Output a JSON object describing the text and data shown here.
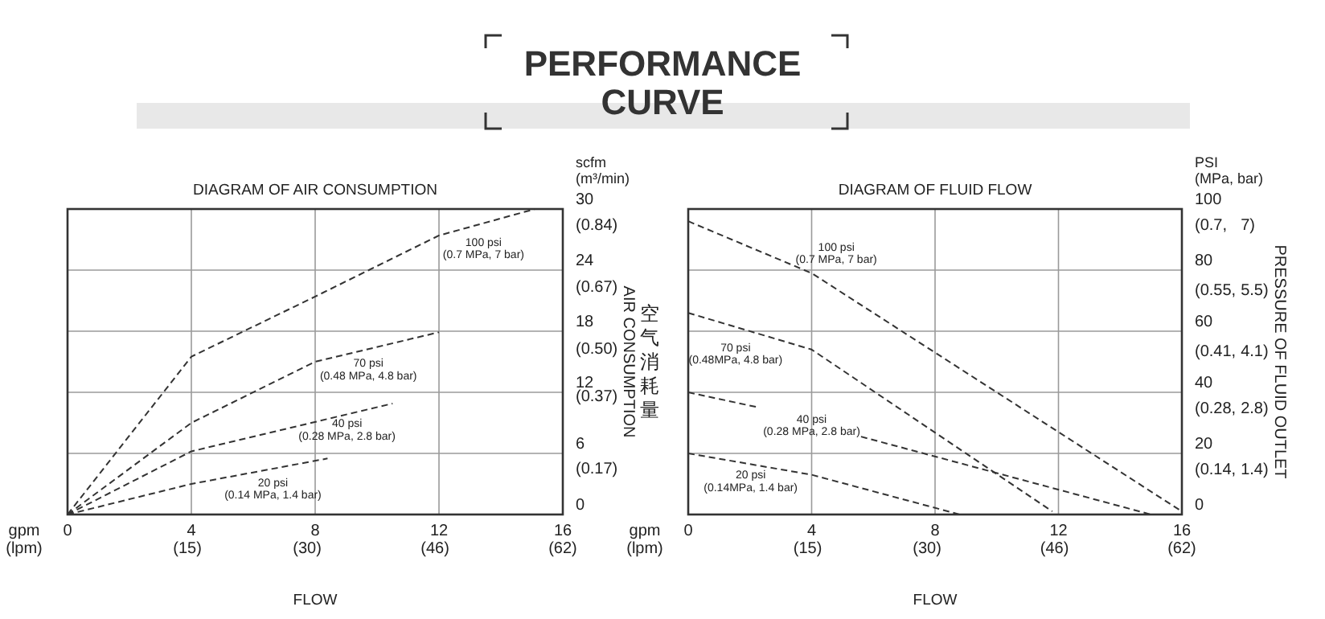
{
  "chart_data": [
    {
      "type": "other",
      "title": "PERFORMANCE CURVE"
    },
    {
      "type": "line",
      "title": "DIAGRAM OF AIR CONSUMPTION",
      "xlabel": "FLOW",
      "y2label": "AIR CONSUMPTION",
      "annotations": [
        "gpm (lpm)",
        "scfm (m³/min)",
        "空气消耗量"
      ],
      "xlim": [
        0,
        16
      ],
      "xticks": [
        0,
        4,
        8,
        12,
        16
      ],
      "x2lim": [
        0,
        62
      ],
      "x2ticks": [
        {
          "value": 15,
          "label": "(15)"
        },
        {
          "value": 30,
          "label": "(30)"
        },
        {
          "value": 46,
          "label": "(46)"
        },
        {
          "value": 62,
          "label": "(62)"
        }
      ],
      "ylim": [
        0,
        30
      ],
      "yticks": [
        0,
        6,
        12,
        18,
        24,
        30
      ],
      "y2lim": [
        0,
        0.84
      ],
      "y2ticks": [
        {
          "value": 0.17,
          "label": "(0.17)"
        },
        {
          "value": 0.37,
          "label": "(0.37)"
        },
        {
          "value": 0.5,
          "label": "(0.50)"
        },
        {
          "value": 0.67,
          "label": "(0.67)"
        },
        {
          "value": 0.84,
          "label": "(0.84)"
        }
      ],
      "grid": true,
      "line_style": "dashed",
      "series": [
        {
          "name": "100 psi (0.7 MPa, 7 bar)",
          "color": "#333333",
          "x": [
            0,
            4,
            8,
            12,
            15.1
          ],
          "values": [
            0,
            15.5,
            21.4,
            27.4,
            30
          ]
        },
        {
          "name": "70 psi (0.48 MPa, 4.8 bar)",
          "color": "#333333",
          "x": [
            0,
            4,
            8,
            12
          ],
          "values": [
            0,
            9,
            15,
            17.9
          ]
        },
        {
          "name": "40 psi (0.28 MPa, 2.8 bar)",
          "color": "#333333",
          "x": [
            0,
            4,
            10.5
          ],
          "values": [
            0,
            6.2,
            10.9
          ]
        },
        {
          "name": "20 psi (0.14 MPa, 1.4 bar)",
          "color": "#333333",
          "x": [
            0,
            4,
            8.4
          ],
          "values": [
            0,
            3,
            5.5
          ]
        }
      ]
    },
    {
      "type": "line",
      "title": "DIAGRAM OF FLUID FLOW",
      "xlabel": "FLOW",
      "y3label": "PRESSURE OF FLUID OUTLET",
      "annotations": [
        "gpm (lpm)",
        "PSI (MPa, bar)"
      ],
      "xlim": [
        0,
        16
      ],
      "xticks": [
        0,
        4,
        8,
        12,
        16
      ],
      "x2lim": [
        0,
        62
      ],
      "x2ticks": [
        {
          "value": 15,
          "label": "(15)"
        },
        {
          "value": 30,
          "label": "(30)"
        },
        {
          "value": 46,
          "label": "(46)"
        },
        {
          "value": 62,
          "label": "(62)"
        }
      ],
      "ylim": [
        0,
        100
      ],
      "yticks": [
        0,
        20,
        40,
        60,
        80,
        100
      ],
      "y2lim": [
        0,
        0.7
      ],
      "y2ticks": [
        {
          "value": 0.14,
          "label": "(0.14,"
        },
        {
          "value": 0.28,
          "label": "(0.28,"
        },
        {
          "value": 0.41,
          "label": "(0.41,"
        },
        {
          "value": 0.55,
          "label": "(0.55,"
        },
        {
          "value": 0.7,
          "label": "(0.7,"
        }
      ],
      "y3lim": [
        0,
        7
      ],
      "y3ticks": [
        {
          "value": 1.4,
          "label": "1.4)"
        },
        {
          "value": 2.8,
          "label": "2.8)"
        },
        {
          "value": 4.1,
          "label": "4.1)"
        },
        {
          "value": 5.5,
          "label": "5.5)"
        },
        {
          "value": 7,
          "label": "7)"
        }
      ],
      "grid": true,
      "line_style": "dashed",
      "series": [
        {
          "name": "100 psi (0.7 MPa, 7 bar)",
          "color": "#333333",
          "x": [
            0,
            4,
            16
          ],
          "values": [
            96,
            79,
            1
          ]
        },
        {
          "name": "70 psi (0.48MPa, 4.8 bar)",
          "color": "#333333",
          "x": [
            0,
            4,
            11.8
          ],
          "values": [
            66,
            54,
            1
          ]
        },
        {
          "name": "40 psi (0.28 MPa, 2.8 bar)",
          "color": "#333333",
          "x": [
            0,
            2.3,
            4,
            5.6,
            15
          ],
          "values": [
            40,
            35,
            null,
            25.5,
            0
          ]
        },
        {
          "name": "20 psi (0.14MPa, 1.4 bar)",
          "color": "#333333",
          "x": [
            0,
            4,
            8.8
          ],
          "values": [
            20,
            13,
            0
          ]
        }
      ]
    }
  ]
}
